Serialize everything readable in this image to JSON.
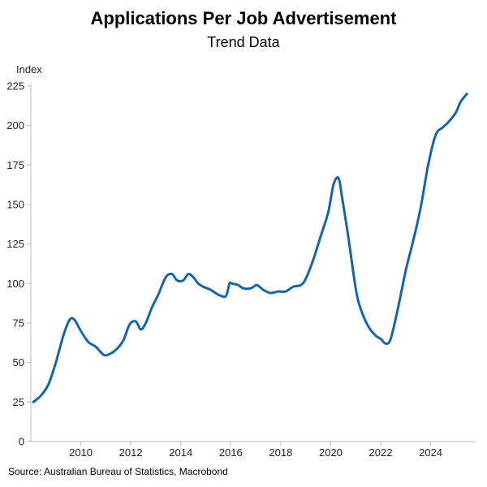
{
  "header": {
    "title": "Applications Per Job Advertisement",
    "subtitle": "Trend Data"
  },
  "footer": {
    "source": "Source: Australian Bureau of Statistics, Macrobond"
  },
  "colors": {
    "line": "#1565a8",
    "axis": "#bbbbbb"
  },
  "chart_data": {
    "type": "line",
    "title": "Applications Per Job Advertisement",
    "subtitle": "Trend Data",
    "xlabel": "",
    "ylabel": "Index",
    "xlim": [
      2008.0,
      2025.8
    ],
    "ylim": [
      0,
      225
    ],
    "xticks": [
      2010,
      2012,
      2014,
      2016,
      2018,
      2020,
      2022,
      2024
    ],
    "yticks": [
      0,
      25,
      50,
      75,
      100,
      125,
      150,
      175,
      200,
      225
    ],
    "grid": false,
    "series": [
      {
        "x": [
          2008.1,
          2008.4,
          2008.7,
          2009.0,
          2009.3,
          2009.55,
          2009.75,
          2010.0,
          2010.3,
          2010.6,
          2010.9,
          2011.1,
          2011.4,
          2011.7,
          2011.95,
          2012.2,
          2012.4,
          2012.6,
          2012.85,
          2013.1,
          2013.4,
          2013.65,
          2013.85,
          2014.1,
          2014.3,
          2014.5,
          2014.7,
          2014.9,
          2015.2,
          2015.5,
          2015.8,
          2015.95,
          2016.05,
          2016.3,
          2016.5,
          2016.8,
          2017.05,
          2017.3,
          2017.6,
          2017.9,
          2018.2,
          2018.5,
          2018.8,
          2019.0,
          2019.3,
          2019.6,
          2019.9,
          2020.1,
          2020.25,
          2020.35,
          2020.45,
          2020.7,
          2021.0,
          2021.2,
          2021.5,
          2021.8,
          2022.0,
          2022.2,
          2022.4,
          2022.7,
          2023.0,
          2023.3,
          2023.6,
          2023.9,
          2024.2,
          2024.5,
          2024.7,
          2025.0,
          2025.2,
          2025.45
        ],
        "values": [
          25,
          29,
          36,
          50,
          67,
          77,
          77,
          70,
          63,
          60,
          55,
          55,
          58,
          64,
          74,
          76,
          71,
          75,
          85,
          93,
          104,
          106,
          102,
          102,
          106,
          104,
          100,
          98,
          96,
          93,
          92,
          100,
          100,
          99,
          97,
          97,
          99,
          96,
          94,
          95,
          95,
          98,
          99,
          103,
          115,
          130,
          145,
          162,
          167,
          165,
          155,
          130,
          97,
          84,
          73,
          67,
          65,
          62,
          65,
          85,
          108,
          127,
          148,
          175,
          194,
          199,
          202,
          208,
          215,
          220
        ]
      }
    ]
  }
}
